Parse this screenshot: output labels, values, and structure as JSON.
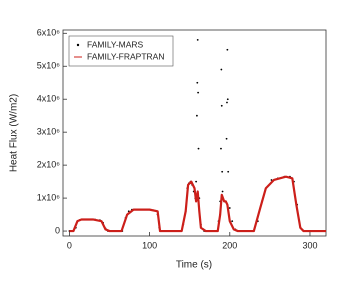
{
  "chart_data": {
    "type": "line",
    "x_label": "Time (s)",
    "y_label": "Heat Flux (W/m2)",
    "xlim": [
      -8,
      320
    ],
    "ylim": [
      -150000,
      6100000
    ],
    "xticks": [
      0,
      100,
      200,
      300
    ],
    "yticks": [
      0,
      {
        "value": 1000000,
        "label": "1x10⁶"
      },
      {
        "value": 2000000,
        "label": "2x10⁶"
      },
      {
        "value": 3000000,
        "label": "3x10⁶"
      },
      {
        "value": 4000000,
        "label": "4x10⁶"
      },
      {
        "value": 5000000,
        "label": "5x10⁶"
      },
      {
        "value": 6000000,
        "label": "6x10⁶"
      }
    ],
    "legend": "upper-left",
    "series": [
      {
        "name": "FAMILY-MARS",
        "color": "#000000",
        "marker": "dot",
        "x": [
          0,
          4,
          8,
          10,
          13,
          18,
          25,
          32,
          38,
          42,
          45,
          48,
          52,
          60,
          66,
          70,
          74,
          78,
          85,
          95,
          105,
          110,
          112,
          115,
          125,
          138,
          142,
          145,
          147,
          149,
          151,
          153,
          155,
          157,
          158,
          159,
          159.5,
          160,
          160.5,
          161,
          162,
          164,
          168,
          175,
          183,
          186,
          188,
          189,
          189.5,
          190,
          190.5,
          191,
          193,
          195,
          196,
          196.5,
          197,
          197.5,
          198,
          200,
          203,
          207,
          212,
          220,
          230,
          235,
          240,
          245,
          252,
          260,
          268,
          275,
          280,
          284,
          288,
          292,
          300,
          310,
          318
        ],
        "values": [
          0,
          0,
          100000,
          300000,
          340000,
          350000,
          350000,
          350000,
          330000,
          250000,
          80000,
          0,
          0,
          0,
          0,
          400000,
          600000,
          650000,
          650000,
          650000,
          630000,
          500000,
          100000,
          0,
          0,
          0,
          200000,
          600000,
          1300000,
          1450000,
          1500000,
          1400000,
          1200000,
          1000000,
          1500000,
          3500000,
          4500000,
          5800000,
          4200000,
          2500000,
          1000000,
          200000,
          0,
          0,
          0,
          300000,
          900000,
          2500000,
          4900000,
          3800000,
          1800000,
          1200000,
          900000,
          900000,
          2800000,
          3900000,
          5500000,
          4000000,
          1800000,
          700000,
          300000,
          50000,
          0,
          0,
          0,
          300000,
          900000,
          1300000,
          1550000,
          1600000,
          1650000,
          1650000,
          1500000,
          800000,
          100000,
          0,
          0,
          0,
          0
        ]
      },
      {
        "name": "FAMILY-FRAPTRAN",
        "color": "#cc1f1a",
        "marker": "line",
        "x": [
          0,
          5,
          10,
          15,
          30,
          40,
          45,
          50,
          65,
          72,
          80,
          100,
          110,
          113,
          140,
          145,
          148,
          152,
          156,
          158,
          160,
          162,
          164,
          170,
          185,
          188,
          190,
          193,
          195,
          197,
          200,
          205,
          210,
          230,
          238,
          245,
          255,
          270,
          278,
          283,
          288,
          292,
          320
        ],
        "values": [
          0,
          0,
          300000,
          350000,
          350000,
          300000,
          50000,
          0,
          0,
          500000,
          650000,
          650000,
          600000,
          0,
          0,
          600000,
          1400000,
          1500000,
          1300000,
          900000,
          1200000,
          600000,
          100000,
          0,
          0,
          500000,
          1100000,
          900000,
          900000,
          800000,
          300000,
          50000,
          0,
          0,
          700000,
          1300000,
          1550000,
          1650000,
          1600000,
          800000,
          100000,
          0,
          0
        ]
      }
    ]
  }
}
